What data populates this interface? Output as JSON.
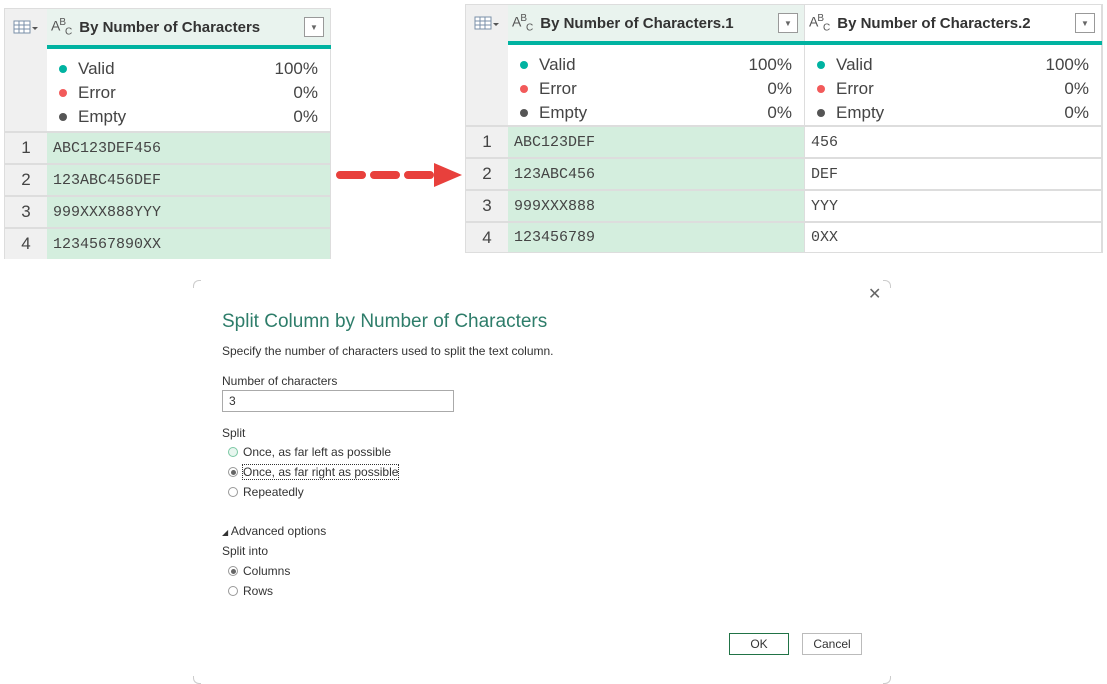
{
  "before": {
    "column": "By Number of Characters",
    "stats": [
      {
        "label": "Valid",
        "pct": "100%"
      },
      {
        "label": "Error",
        "pct": "0%"
      },
      {
        "label": "Empty",
        "pct": "0%"
      }
    ],
    "rows": [
      {
        "n": "1",
        "v": "ABC123DEF456"
      },
      {
        "n": "2",
        "v": "123ABC456DEF"
      },
      {
        "n": "3",
        "v": "999XXX888YYY"
      },
      {
        "n": "4",
        "v": "1234567890XX"
      }
    ]
  },
  "after": {
    "columns": [
      "By Number of Characters.1",
      "By Number of Characters.2"
    ],
    "stats": [
      {
        "label": "Valid",
        "pct": "100%"
      },
      {
        "label": "Error",
        "pct": "0%"
      },
      {
        "label": "Empty",
        "pct": "0%"
      }
    ],
    "rows": [
      {
        "n": "1",
        "a": "ABC123DEF",
        "b": "456"
      },
      {
        "n": "2",
        "a": "123ABC456",
        "b": "DEF"
      },
      {
        "n": "3",
        "a": "999XXX888",
        "b": "YYY"
      },
      {
        "n": "4",
        "a": "123456789",
        "b": "0XX"
      }
    ]
  },
  "colors": {
    "valid": "#00b3a1",
    "error": "#f25a5a",
    "empty": "#555555",
    "arrow": "#e8403c",
    "accent": "#217346"
  },
  "dialog": {
    "title": "Split Column by Number of Characters",
    "description": "Specify the number of characters used to split the text column.",
    "num_label": "Number of characters",
    "num_value": "3",
    "split_label": "Split",
    "split_options": [
      "Once, as far left as possible",
      "Once, as far right as possible",
      "Repeatedly"
    ],
    "split_selected": 1,
    "advanced": "Advanced options",
    "split_into_label": "Split into",
    "into_options": [
      "Columns",
      "Rows"
    ],
    "into_selected": 0,
    "ok": "OK",
    "cancel": "Cancel",
    "close": "✕"
  }
}
